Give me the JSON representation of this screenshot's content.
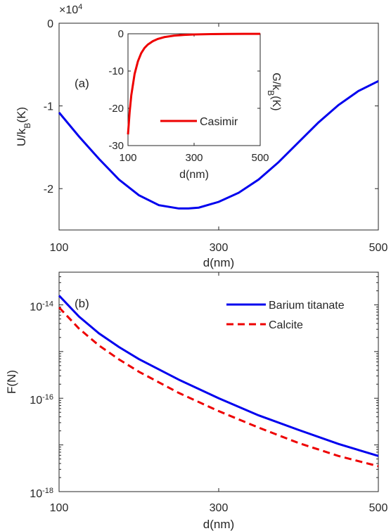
{
  "chart_data": [
    {
      "type": "line",
      "panel_label": "(a)",
      "xlabel": "d(nm)",
      "ylabel": {
        "main": "U/k",
        "sub": "B",
        "tail": "(K)"
      },
      "exponent_label": {
        "base": "×10",
        "power": "4"
      },
      "xlim": [
        100,
        500
      ],
      "ylim": [
        -2.5,
        0
      ],
      "y_scale_multiplier": 10000,
      "xticks": [
        100,
        300,
        500
      ],
      "yticks": [
        0,
        -1,
        -2
      ],
      "ytick_labels": [
        "0",
        "-1",
        "-2"
      ],
      "grid": false,
      "series": [
        {
          "color": "#0000ee",
          "x": [
            100,
            125,
            150,
            175,
            200,
            225,
            250,
            262,
            275,
            300,
            325,
            350,
            375,
            400,
            425,
            450,
            475,
            500
          ],
          "y": [
            -10800,
            -13700,
            -16400,
            -18900,
            -20800,
            -22000,
            -22400,
            -22400,
            -22300,
            -21600,
            -20500,
            -18900,
            -16800,
            -14400,
            -12000,
            -9900,
            -8200,
            -7000
          ]
        }
      ]
    },
    {
      "type": "line",
      "inset": true,
      "xlabel": "d(nm)",
      "ylabel": {
        "main": "G/k",
        "sub": "B",
        "tail": "(K)"
      },
      "xlim": [
        100,
        500
      ],
      "ylim": [
        -30,
        0
      ],
      "xticks": [
        100,
        300,
        500
      ],
      "yticks": [
        0,
        -10,
        -20,
        -30
      ],
      "ytick_labels": [
        "0",
        "-10",
        "-20",
        "-30"
      ],
      "legend": {
        "position": "lower-right"
      },
      "grid": false,
      "series": [
        {
          "name": "Casimir",
          "color": "#ee0000",
          "x": [
            100,
            105,
            110,
            120,
            130,
            140,
            150,
            160,
            175,
            190,
            210,
            240,
            270,
            300,
            350,
            400,
            450,
            500
          ],
          "y": [
            -27,
            -21,
            -16.5,
            -10.8,
            -7.4,
            -5.2,
            -3.8,
            -2.9,
            -2.0,
            -1.4,
            -0.9,
            -0.5,
            -0.3,
            -0.2,
            -0.1,
            -0.05,
            -0.03,
            -0.02
          ]
        }
      ]
    },
    {
      "type": "line",
      "panel_label": "(b)",
      "xlabel": "d(nm)",
      "ylabel": {
        "main": "F(N)"
      },
      "xlim": [
        100,
        500
      ],
      "yscale": "log",
      "ylim_exponents": [
        -18,
        -13.3
      ],
      "xticks": [
        100,
        300,
        500
      ],
      "ytick_exponents": [
        -14,
        -16,
        -18
      ],
      "ytick_base": "10",
      "legend": {
        "position": "top-right"
      },
      "grid": false,
      "series": [
        {
          "name": "Barium titanate",
          "color": "#0000ee",
          "style": "solid",
          "x": [
            100,
            125,
            150,
            175,
            200,
            250,
            300,
            350,
            400,
            450,
            500
          ],
          "y": [
            1.58e-14,
            5.6e-15,
            2.45e-15,
            1.25e-15,
            6.9e-16,
            2.5e-16,
            1e-16,
            4.3e-17,
            2.1e-17,
            1.05e-17,
            5.8e-18
          ]
        },
        {
          "name": "Calcite",
          "color": "#ee0000",
          "style": "dashed",
          "x": [
            100,
            125,
            150,
            175,
            200,
            250,
            300,
            350,
            400,
            450,
            500
          ],
          "y": [
            8.8e-15,
            3.1e-15,
            1.35e-15,
            6.8e-16,
            3.7e-16,
            1.3e-16,
            5.3e-17,
            2.35e-17,
            1.1e-17,
            5.8e-18,
            3.5e-18
          ]
        }
      ]
    }
  ]
}
